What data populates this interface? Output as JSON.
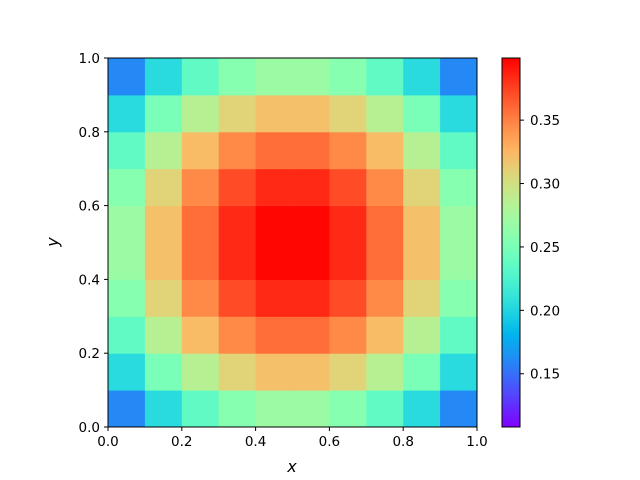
{
  "chart_data": {
    "type": "heatmap",
    "x_label": "x",
    "y_label": "y",
    "xlim": [
      0,
      1
    ],
    "ylim": [
      0,
      1
    ],
    "xticks": [
      {
        "value": 0,
        "label": "0.0"
      },
      0.2,
      0.4,
      0.6,
      0.8,
      {
        "value": 1,
        "label": "1.0"
      }
    ],
    "yticks": [
      {
        "value": 0,
        "label": "0.0"
      },
      0.2,
      0.4,
      0.6,
      0.8,
      {
        "value": 1,
        "label": "1.0"
      }
    ],
    "colormap": "rainbow",
    "clim": [
      0.108,
      0.399
    ],
    "cticks": [
      0.15,
      {
        "value": 0.2,
        "label": "0.20"
      },
      0.25,
      {
        "value": 0.3,
        "label": "0.30"
      },
      0.35
    ],
    "z": [
      [
        0.16,
        0.204,
        0.236,
        0.258,
        0.269,
        0.269,
        0.258,
        0.236,
        0.204,
        0.16
      ],
      [
        0.204,
        0.25,
        0.285,
        0.309,
        0.32,
        0.32,
        0.309,
        0.285,
        0.25,
        0.204
      ],
      [
        0.236,
        0.285,
        0.322,
        0.346,
        0.358,
        0.358,
        0.346,
        0.322,
        0.285,
        0.236
      ],
      [
        0.258,
        0.309,
        0.346,
        0.371,
        0.384,
        0.384,
        0.371,
        0.346,
        0.309,
        0.258
      ],
      [
        0.269,
        0.32,
        0.358,
        0.384,
        0.397,
        0.397,
        0.384,
        0.358,
        0.32,
        0.269
      ],
      [
        0.269,
        0.32,
        0.358,
        0.384,
        0.397,
        0.397,
        0.384,
        0.358,
        0.32,
        0.269
      ],
      [
        0.258,
        0.309,
        0.346,
        0.371,
        0.384,
        0.384,
        0.371,
        0.346,
        0.309,
        0.258
      ],
      [
        0.236,
        0.285,
        0.322,
        0.346,
        0.358,
        0.358,
        0.346,
        0.322,
        0.285,
        0.236
      ],
      [
        0.204,
        0.25,
        0.285,
        0.309,
        0.32,
        0.32,
        0.309,
        0.285,
        0.25,
        0.204
      ],
      [
        0.16,
        0.204,
        0.236,
        0.258,
        0.269,
        0.269,
        0.258,
        0.236,
        0.204,
        0.16
      ]
    ]
  }
}
